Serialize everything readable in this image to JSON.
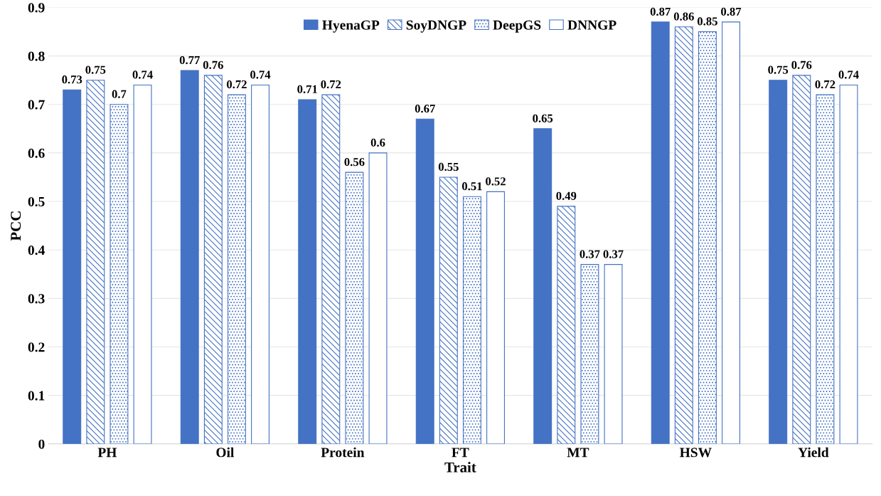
{
  "chart_data": {
    "type": "bar",
    "xlabel": "Trait",
    "ylabel": "PCC",
    "categories": [
      "PH",
      "Oil",
      "Protein",
      "FT",
      "MT",
      "HSW",
      "Yield"
    ],
    "series": [
      {
        "name": "HyenaGP",
        "color": "#4472c4",
        "values": [
          0.73,
          0.77,
          0.71,
          0.67,
          0.65,
          0.87,
          0.75
        ]
      },
      {
        "name": "SoyDNGP",
        "color": "#4472c4",
        "values": [
          0.75,
          0.76,
          0.72,
          0.55,
          0.49,
          0.86,
          0.76
        ]
      },
      {
        "name": "DeepGS",
        "color": "#4472c4",
        "values": [
          0.7,
          0.72,
          0.56,
          0.51,
          0.37,
          0.85,
          0.72
        ]
      },
      {
        "name": "DNNGP",
        "color": "#4472c4",
        "values": [
          0.74,
          0.74,
          0.6,
          0.52,
          0.37,
          0.87,
          0.74
        ]
      }
    ],
    "ylim": [
      0,
      0.9
    ],
    "yticks": [
      0,
      0.1,
      0.2,
      0.3,
      0.4,
      0.5,
      0.6,
      0.7,
      0.8,
      0.9
    ],
    "grid": "y",
    "legend": "top",
    "data_labels": true
  }
}
